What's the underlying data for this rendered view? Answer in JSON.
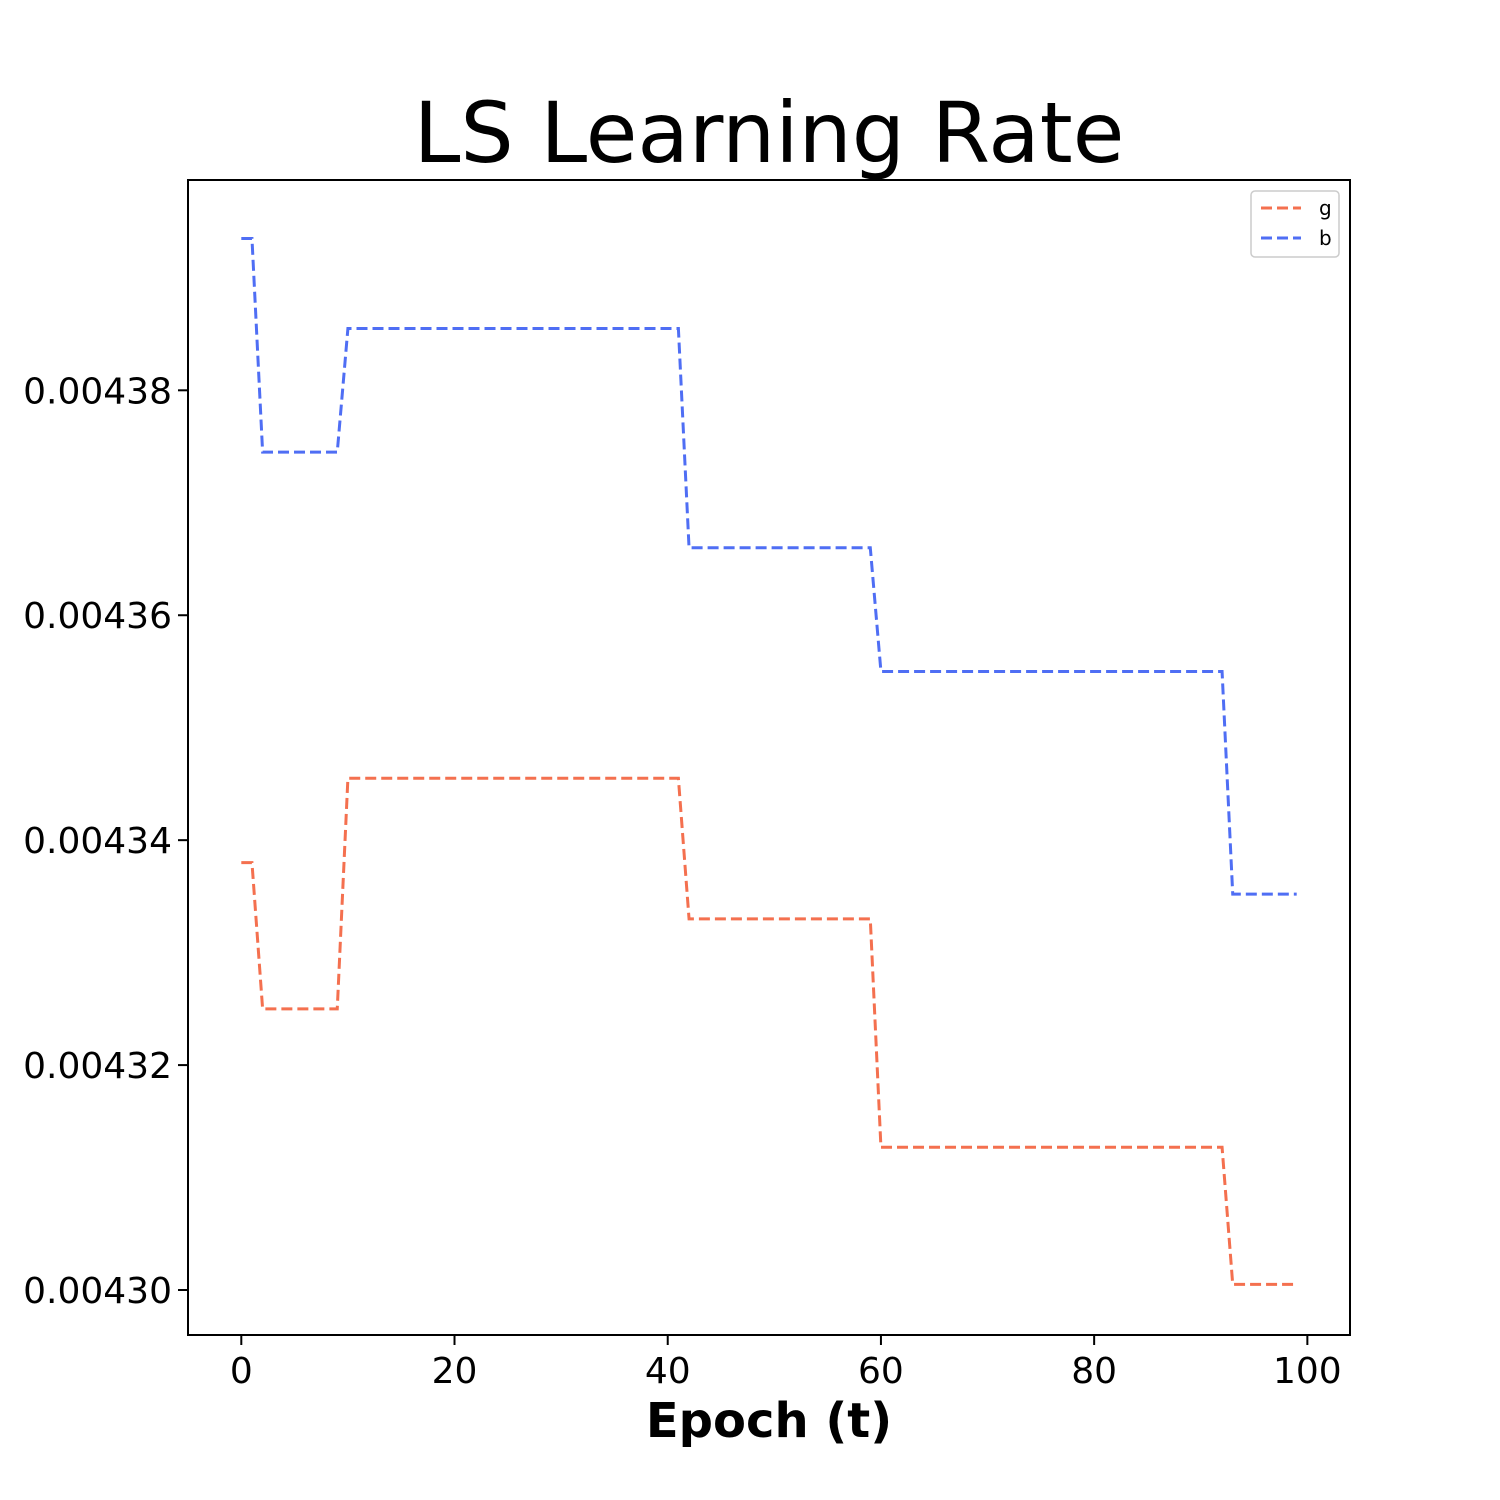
{
  "chart_data": {
    "type": "line",
    "title": "LS Learning Rate",
    "xlabel": "Epoch (t)",
    "ylabel": "",
    "xlim": [
      -5,
      104
    ],
    "ylim": [
      0.004296,
      0.0043987
    ],
    "xticks": [
      0,
      20,
      40,
      60,
      80,
      100
    ],
    "yticks": [
      0.0043,
      0.00432,
      0.00434,
      0.00436,
      0.00438
    ],
    "ytick_labels": [
      "0.00430",
      "0.00432",
      "0.00434",
      "0.00436",
      "0.00438"
    ],
    "grid": false,
    "legend_position": "top-right",
    "line_style": "dashed",
    "series": [
      {
        "name": "g",
        "color": "#F4704F",
        "points": [
          [
            0,
            0.004338
          ],
          [
            1,
            0.004338
          ],
          [
            2,
            0.004325
          ],
          [
            9,
            0.004325
          ],
          [
            10,
            0.0043455
          ],
          [
            41,
            0.0043455
          ],
          [
            42,
            0.004333
          ],
          [
            59,
            0.004333
          ],
          [
            60,
            0.0043127
          ],
          [
            92,
            0.0043127
          ],
          [
            93,
            0.0043005
          ],
          [
            99,
            0.0043005
          ]
        ]
      },
      {
        "name": "b",
        "color": "#4F6EF4",
        "points": [
          [
            0,
            0.0043935
          ],
          [
            1,
            0.0043935
          ],
          [
            2,
            0.0043745
          ],
          [
            9,
            0.0043745
          ],
          [
            10,
            0.0043855
          ],
          [
            41,
            0.0043855
          ],
          [
            42,
            0.004366
          ],
          [
            59,
            0.004366
          ],
          [
            60,
            0.004355
          ],
          [
            92,
            0.004355
          ],
          [
            93,
            0.0043352
          ],
          [
            99,
            0.0043352
          ]
        ]
      }
    ]
  }
}
